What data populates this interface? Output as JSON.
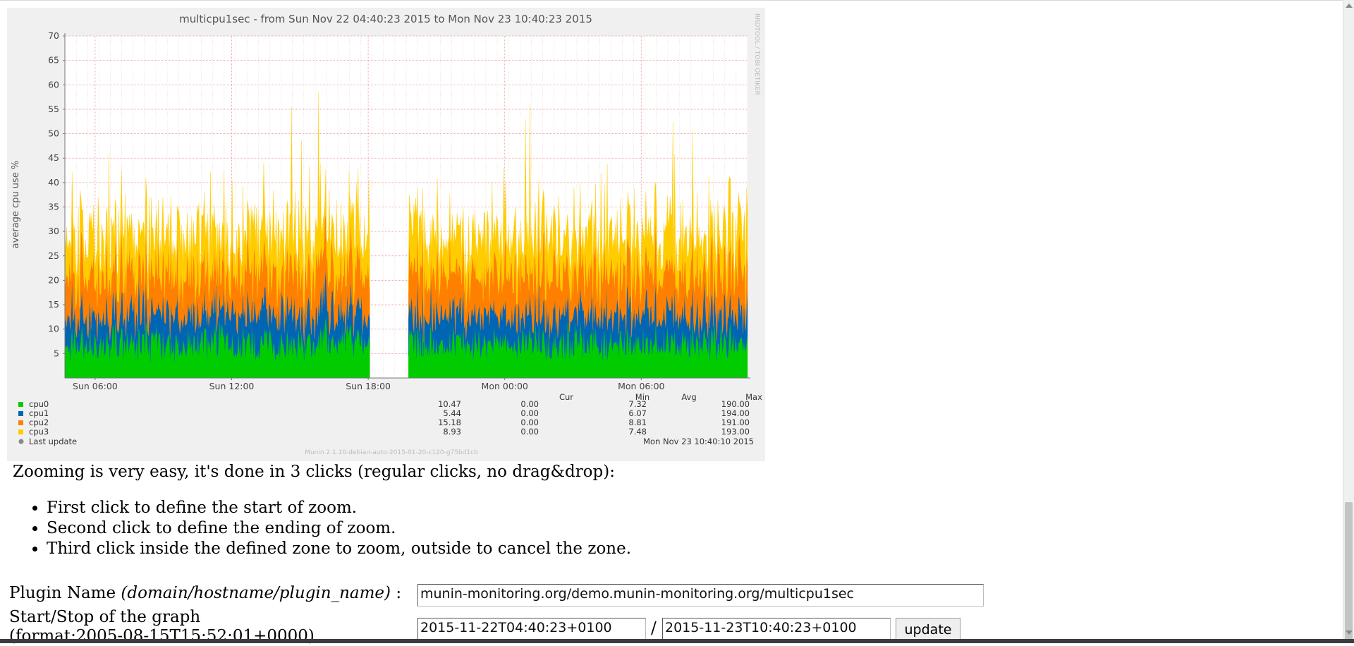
{
  "graph": {
    "title": "multicpu1sec - from Sun Nov 22 04:40:23 2015 to Mon Nov 23 10:40:23 2015",
    "ylabel": "average cpu use %",
    "watermark": "RRDTOOL / TOBI OETIKER",
    "footer": "Munin 2.1.10-debian-auto-2015-01-20-c120-g75bd1cb",
    "legend_headers": [
      "Cur",
      "Min",
      "Avg",
      "Max"
    ],
    "legend": [
      {
        "name": "cpu0",
        "color": "#00cc00",
        "cur": "10.47",
        "min": "0.00",
        "avg": "7.32",
        "max": "190.00"
      },
      {
        "name": "cpu1",
        "color": "#0066b3",
        "cur": "5.44",
        "min": "0.00",
        "avg": "6.07",
        "max": "194.00"
      },
      {
        "name": "cpu2",
        "color": "#ff8000",
        "cur": "15.18",
        "min": "0.00",
        "avg": "8.81",
        "max": "191.00"
      },
      {
        "name": "cpu3",
        "color": "#ffcc00",
        "cur": "8.93",
        "min": "0.00",
        "avg": "7.48",
        "max": "193.00"
      }
    ],
    "last_update_label": "Last update",
    "last_update_value": "Mon Nov 23 10:40:10 2015",
    "last_update_color": "#888888"
  },
  "chart_data": {
    "type": "area",
    "title": "multicpu1sec - from Sun Nov 22 04:40:23 2015 to Mon Nov 23 10:40:23 2015",
    "xlabel": "",
    "ylabel": "average cpu use %",
    "ylim": [
      0,
      70
    ],
    "yticks": [
      5,
      10,
      15,
      20,
      25,
      30,
      35,
      40,
      45,
      50,
      55,
      60,
      65,
      70
    ],
    "xlim": [
      "Sun Nov 22 04:40",
      "Mon Nov 23 10:40"
    ],
    "xtick_labels": [
      "Sun 06:00",
      "Sun 12:00",
      "Sun 18:00",
      "Mon 00:00",
      "Mon 06:00"
    ],
    "xtick_hours": [
      1.33,
      7.33,
      13.33,
      19.33,
      25.33
    ],
    "gap_hours": [
      13.4,
      15.1
    ],
    "total_hours": 30,
    "stacked": true,
    "grid": true,
    "series": [
      {
        "name": "cpu0",
        "color": "#00cc00",
        "typical": 7.3
      },
      {
        "name": "cpu1",
        "color": "#0066b3",
        "typical": 6.1
      },
      {
        "name": "cpu2",
        "color": "#ff8000",
        "typical": 8.8
      },
      {
        "name": "cpu3",
        "color": "#ffcc00",
        "typical": 7.5
      }
    ]
  },
  "help": {
    "intro": "Zooming is very easy, it's done in 3 clicks (regular clicks, no drag&drop):",
    "steps": [
      "First click to define the start of zoom.",
      "Second click to define the ending of zoom.",
      "Third click inside the defined zone to zoom, outside to cancel the zone."
    ]
  },
  "form": {
    "plugin_label": "Plugin Name",
    "plugin_hint": "(domain/hostname/plugin_name)",
    "plugin_sep": " :",
    "plugin_value": "munin-monitoring.org/demo.munin-monitoring.org/multicpu1sec",
    "range_label": "Start/Stop of the graph",
    "range_hint": "(format:2005-08-15T15:52:01+0000)",
    "start_value": "2015-11-22T04:40:23+0100",
    "slash": "/",
    "stop_value": "2015-11-23T10:40:23+0100",
    "update_label": "update"
  }
}
